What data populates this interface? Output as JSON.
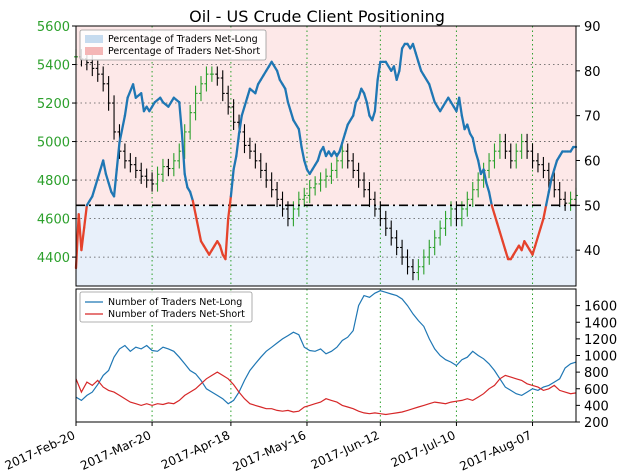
{
  "chart_data": [
    {
      "type": "line",
      "title": "Oil - US Crude Client Positioning",
      "x_tick_labels": [
        "2017-Feb-20",
        "2017-Mar-20",
        "2017-Apr-18",
        "2017-May-16",
        "2017-Jun-12",
        "2017-Jul-10",
        "2017-Aug-07"
      ],
      "x_tick_days": [
        0,
        28,
        57,
        85,
        112,
        140,
        168
      ],
      "x_range_days": [
        0,
        184
      ],
      "y_left": {
        "label": "",
        "range": [
          4250,
          5600
        ],
        "ticks": [
          4400,
          4600,
          4800,
          5000,
          5200,
          5400,
          5600
        ],
        "color": "#2ca02c"
      },
      "y_right": {
        "label": "",
        "range": [
          32,
          90
        ],
        "ticks": [
          40,
          50,
          60,
          70,
          80,
          90
        ]
      },
      "reference_line": {
        "axis": "right",
        "value": 50,
        "style": "dash-dot"
      },
      "legend": [
        {
          "name": "Percentage of Traders Net-Long",
          "color": "#c6dbef"
        },
        {
          "name": "Percentage of Traders Net-Short",
          "color": "#f4b6b6"
        }
      ],
      "legend_placement": "top-left",
      "grid": "dotted green vertical lines at x ticks, dotted gray horizontal lines at left ticks",
      "series": [
        {
          "name": "Percentage of Traders Net-Long",
          "color": "#1f77b4",
          "x_days": [
            0,
            1,
            2,
            3,
            4,
            5,
            6,
            7,
            8,
            9,
            10,
            11,
            12,
            13,
            14,
            15,
            16,
            18,
            19,
            21,
            22,
            24,
            25,
            26,
            27,
            28,
            29,
            31,
            32,
            34,
            35,
            36,
            38,
            39,
            40,
            41,
            42,
            43,
            44,
            46,
            47,
            48,
            49,
            50,
            51,
            52,
            53,
            54,
            55,
            56,
            57,
            58,
            59,
            60,
            61,
            62,
            63,
            64,
            66,
            67,
            68,
            69,
            70,
            71,
            72,
            74,
            75,
            76,
            77,
            78,
            79,
            80,
            82,
            83,
            84,
            85,
            86,
            87,
            88,
            89,
            90,
            91,
            92,
            93,
            94,
            95,
            96,
            97,
            98,
            99,
            100,
            102,
            103,
            104,
            105,
            106,
            107,
            108,
            109,
            110,
            111,
            112,
            113,
            114,
            116,
            117,
            118,
            119,
            120,
            121,
            122,
            123,
            124,
            125,
            126,
            127,
            128,
            130,
            131,
            132,
            133,
            134,
            135,
            136,
            137,
            138,
            139,
            140,
            141,
            142,
            143,
            144,
            145,
            146,
            147,
            148,
            149,
            150,
            151,
            152,
            153,
            154,
            155,
            156,
            157,
            158,
            159,
            160,
            161,
            162,
            163,
            164,
            165,
            166,
            167,
            168,
            169,
            170,
            171,
            172,
            173,
            174,
            175,
            176,
            177,
            178,
            179,
            180,
            181,
            182,
            183,
            184
          ],
          "values": [
            36,
            48,
            40,
            45,
            50,
            51,
            52,
            54,
            56,
            58,
            60,
            57,
            55,
            53,
            52,
            58,
            64,
            70,
            74,
            77,
            74,
            75,
            71,
            72,
            71,
            72,
            73,
            74,
            73,
            72,
            73,
            74,
            73,
            66,
            57,
            54,
            53,
            51,
            48,
            42,
            41,
            40,
            39,
            40,
            41,
            42,
            41,
            39,
            38,
            47,
            52,
            58,
            61,
            66,
            70,
            72,
            74,
            76,
            75,
            77,
            78,
            79,
            80,
            81,
            82,
            80,
            78,
            77,
            76,
            73,
            71,
            69,
            67,
            63,
            60,
            58,
            57,
            58,
            59,
            60,
            62,
            63,
            61,
            62,
            61,
            62,
            61,
            62,
            64,
            66,
            68,
            70,
            73,
            74,
            76,
            75,
            73,
            70,
            69,
            71,
            78,
            82,
            82,
            82,
            80,
            81,
            78,
            80,
            85,
            86,
            86,
            85,
            86,
            84,
            82,
            80,
            79,
            77,
            75,
            73,
            72,
            71,
            72,
            73,
            74,
            73,
            72,
            71,
            74,
            70,
            67,
            68,
            66,
            65,
            62,
            60,
            57,
            58,
            55,
            53,
            50,
            48,
            46,
            44,
            42,
            40,
            38,
            38,
            39,
            40,
            41,
            40,
            42,
            41,
            40,
            39,
            41,
            43,
            45,
            47,
            50,
            53,
            56,
            58,
            60,
            61,
            62,
            62,
            62,
            62,
            63,
            63
          ]
        }
      ],
      "ohlc_close": {
        "x_days": [
          0,
          2,
          4,
          6,
          8,
          10,
          12,
          14,
          16,
          18,
          20,
          22,
          24,
          26,
          28,
          30,
          32,
          34,
          36,
          38,
          40,
          42,
          44,
          46,
          48,
          50,
          52,
          54,
          56,
          58,
          60,
          62,
          64,
          66,
          68,
          70,
          72,
          74,
          76,
          78,
          80,
          82,
          84,
          86,
          88,
          90,
          92,
          94,
          96,
          98,
          100,
          102,
          104,
          106,
          108,
          110,
          112,
          114,
          116,
          118,
          120,
          122,
          124,
          126,
          128,
          130,
          132,
          134,
          136,
          138,
          140,
          142,
          144,
          146,
          148,
          150,
          152,
          154,
          156,
          158,
          160,
          162,
          164,
          166,
          168,
          170,
          172,
          174,
          176,
          178,
          180,
          182,
          184
        ],
        "values": [
          5440,
          5430,
          5410,
          5380,
          5350,
          5300,
          5200,
          5050,
          4950,
          4900,
          4880,
          4850,
          4820,
          4800,
          4780,
          4830,
          4870,
          4860,
          4900,
          4950,
          5050,
          5150,
          5250,
          5300,
          5350,
          5350,
          5330,
          5250,
          5180,
          5100,
          5050,
          4980,
          4950,
          4900,
          4850,
          4800,
          4750,
          4700,
          4650,
          4600,
          4650,
          4700,
          4720,
          4760,
          4780,
          4800,
          4820,
          4850,
          4900,
          4950,
          4900,
          4850,
          4800,
          4750,
          4700,
          4650,
          4600,
          4550,
          4500,
          4450,
          4400,
          4350,
          4320,
          4350,
          4400,
          4450,
          4500,
          4550,
          4600,
          4650,
          4600,
          4650,
          4700,
          4750,
          4800,
          4850,
          4900,
          4950,
          5000,
          4950,
          4900,
          4950,
          5000,
          4950,
          4900,
          4880,
          4850,
          4800,
          4750,
          4700,
          4680,
          4700,
          4720
        ]
      }
    },
    {
      "type": "line",
      "x_range_days": [
        0,
        184
      ],
      "y_right": {
        "label": "",
        "range": [
          200,
          1800
        ],
        "ticks": [
          200,
          400,
          600,
          800,
          1000,
          1200,
          1400,
          1600
        ]
      },
      "legend_placement": "top-left",
      "grid": "dotted green vertical lines at x ticks",
      "series": [
        {
          "name": "Number of Traders Net-Long",
          "color": "#1f77b4",
          "x_days": [
            0,
            2,
            4,
            6,
            8,
            10,
            12,
            14,
            16,
            18,
            20,
            22,
            24,
            26,
            28,
            30,
            32,
            34,
            36,
            38,
            40,
            42,
            44,
            46,
            48,
            50,
            52,
            54,
            56,
            58,
            60,
            62,
            64,
            66,
            68,
            70,
            72,
            74,
            76,
            78,
            80,
            82,
            84,
            86,
            88,
            90,
            92,
            94,
            96,
            98,
            100,
            102,
            104,
            106,
            108,
            110,
            112,
            114,
            116,
            118,
            120,
            122,
            124,
            126,
            128,
            130,
            132,
            134,
            136,
            138,
            140,
            142,
            144,
            146,
            148,
            150,
            152,
            154,
            156,
            158,
            160,
            162,
            164,
            166,
            168,
            170,
            172,
            174,
            176,
            178,
            180,
            182,
            184
          ],
          "values": [
            500,
            460,
            520,
            560,
            650,
            760,
            820,
            980,
            1080,
            1120,
            1050,
            1100,
            1080,
            1120,
            1060,
            1050,
            1100,
            1080,
            1050,
            980,
            900,
            820,
            780,
            700,
            600,
            560,
            520,
            480,
            420,
            460,
            560,
            700,
            820,
            900,
            980,
            1050,
            1100,
            1150,
            1200,
            1240,
            1280,
            1250,
            1100,
            1060,
            1050,
            1080,
            1020,
            1050,
            1100,
            1180,
            1220,
            1300,
            1600,
            1720,
            1700,
            1750,
            1780,
            1760,
            1740,
            1720,
            1680,
            1600,
            1500,
            1420,
            1350,
            1200,
            1080,
            1000,
            950,
            920,
            880,
            950,
            980,
            1050,
            1000,
            960,
            900,
            820,
            720,
            620,
            580,
            540,
            520,
            560,
            600,
            580,
            620,
            640,
            680,
            720,
            850,
            900,
            920
          ]
        },
        {
          "name": "Number of Traders Net-Short",
          "color": "#d62728",
          "x_days": [
            0,
            2,
            4,
            6,
            8,
            10,
            12,
            14,
            16,
            18,
            20,
            22,
            24,
            26,
            28,
            30,
            32,
            34,
            36,
            38,
            40,
            42,
            44,
            46,
            48,
            50,
            52,
            54,
            56,
            58,
            60,
            62,
            64,
            66,
            68,
            70,
            72,
            74,
            76,
            78,
            80,
            82,
            84,
            86,
            88,
            90,
            92,
            94,
            96,
            98,
            100,
            102,
            104,
            106,
            108,
            110,
            112,
            114,
            116,
            118,
            120,
            122,
            124,
            126,
            128,
            130,
            132,
            134,
            136,
            138,
            140,
            142,
            144,
            146,
            148,
            150,
            152,
            154,
            156,
            158,
            160,
            162,
            164,
            166,
            168,
            170,
            172,
            174,
            176,
            178,
            180,
            182,
            184
          ],
          "values": [
            720,
            560,
            680,
            640,
            700,
            620,
            580,
            560,
            520,
            480,
            440,
            420,
            400,
            420,
            400,
            420,
            410,
            430,
            420,
            460,
            520,
            560,
            600,
            660,
            720,
            760,
            800,
            760,
            720,
            650,
            560,
            480,
            420,
            400,
            380,
            360,
            360,
            340,
            330,
            340,
            320,
            330,
            380,
            400,
            420,
            440,
            480,
            460,
            440,
            400,
            380,
            360,
            330,
            310,
            300,
            310,
            300,
            290,
            300,
            310,
            320,
            340,
            360,
            380,
            400,
            420,
            440,
            430,
            420,
            440,
            450,
            460,
            480,
            460,
            500,
            540,
            600,
            640,
            720,
            760,
            740,
            720,
            700,
            660,
            640,
            620,
            580,
            600,
            640,
            580,
            560,
            540,
            550
          ]
        }
      ]
    }
  ]
}
